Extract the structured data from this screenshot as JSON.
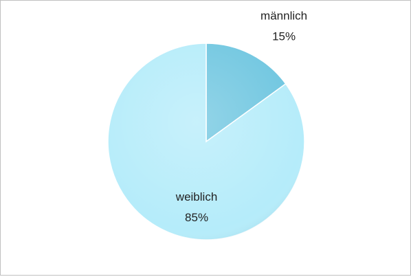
{
  "chart_data": {
    "type": "pie",
    "categories": [
      "männlich",
      "weiblich"
    ],
    "values": [
      15,
      85
    ],
    "value_labels": [
      "15%",
      "85%"
    ],
    "colors": [
      "#6fc6e0",
      "#b5ecfa"
    ]
  }
}
